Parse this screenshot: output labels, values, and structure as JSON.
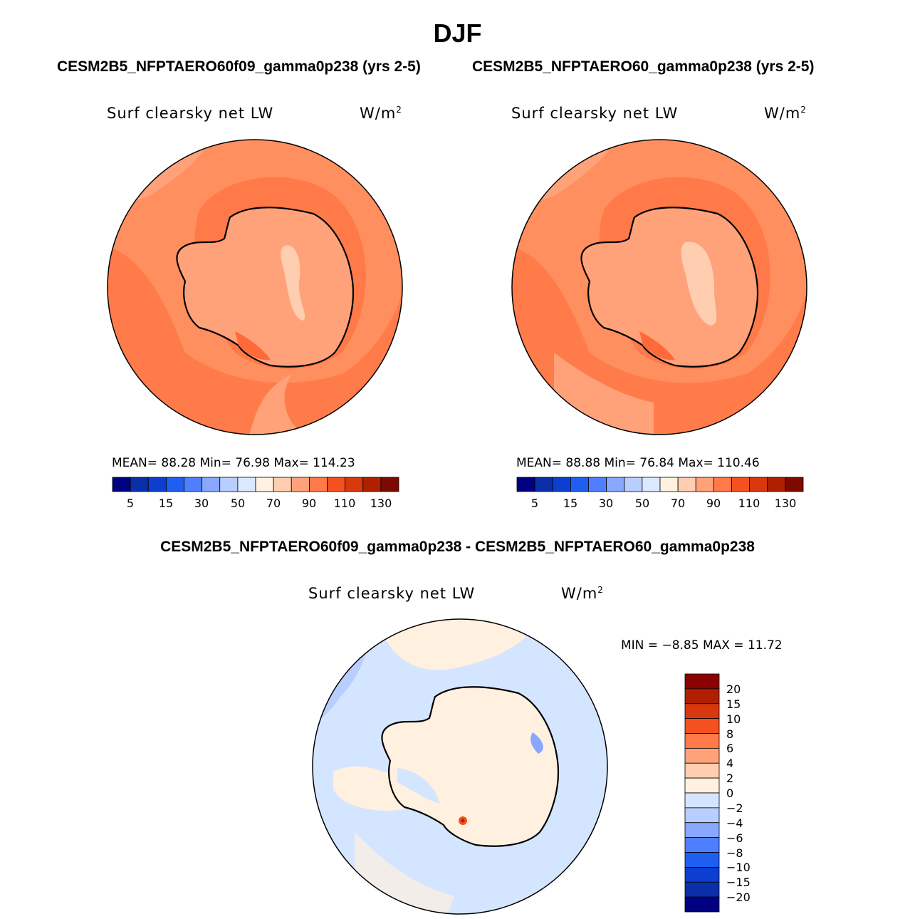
{
  "figure": {
    "season": "DJF",
    "case_titles": [
      "CESM2B5_NFPTAERO60f09_gamma0p238 (yrs 2-5)",
      "CESM2B5_NFPTAERO60_gamma0p238 (yrs 2-5)"
    ],
    "diff_title": "CESM2B5_NFPTAERO60f09_gamma0p238 - CESM2B5_NFPTAERO60_gamma0p238"
  },
  "panels": [
    {
      "variable": "Surf clearsky net LW",
      "units": "W/m",
      "units_sup": "2",
      "stats_text": "MEAN=   88.28   Min=   76.98   Max=  114.23",
      "colorbar_ticks": [
        "5",
        "15",
        "30",
        "50",
        "70",
        "90",
        "110",
        "130"
      ]
    },
    {
      "variable": "Surf clearsky net LW",
      "units": "W/m",
      "units_sup": "2",
      "stats_text": "MEAN=   88.88   Min=   76.84   Max=  110.46",
      "colorbar_ticks": [
        "5",
        "15",
        "30",
        "50",
        "70",
        "90",
        "110",
        "130"
      ]
    }
  ],
  "diff_panel": {
    "variable": "Surf clearsky net LW",
    "units": "W/m",
    "units_sup": "2",
    "stats_text": "MIN =   −8.85  MAX =   11.72",
    "colorbar_labels": [
      "20",
      "15",
      "10",
      "8",
      "6",
      "4",
      "2",
      "0",
      "−2",
      "−4",
      "−6",
      "−8",
      "−10",
      "−15",
      "−20"
    ]
  },
  "colors": {
    "abs_scale": [
      "#000080",
      "#0a2fa8",
      "#0c3fd0",
      "#1e5ef0",
      "#4f7fff",
      "#88a8ff",
      "#b8ceff",
      "#dbe8ff",
      "#fff0df",
      "#ffcdb0",
      "#ffa27a",
      "#ff7a48",
      "#f4511e",
      "#d9380e",
      "#b02000",
      "#7d0a00"
    ],
    "diff_scale": [
      "#8b0000",
      "#b02000",
      "#d9380e",
      "#f4511e",
      "#ff7a48",
      "#ffa27a",
      "#ffcdb0",
      "#fff0df",
      "#d4e6ff",
      "#b8ceff",
      "#88a8ff",
      "#4f7fff",
      "#1e5ef0",
      "#0c3fd0",
      "#0a2fa8",
      "#000080"
    ],
    "map_ocean_main": "#ff8f5f",
    "map_ocean_ring": "#ff7a48",
    "map_land": "#ffa27a",
    "map_land_light": "#ffcdb0",
    "diff_base": "#d4e6ff",
    "diff_pos": "#fff0df",
    "diff_neg": "#b8ceff"
  }
}
